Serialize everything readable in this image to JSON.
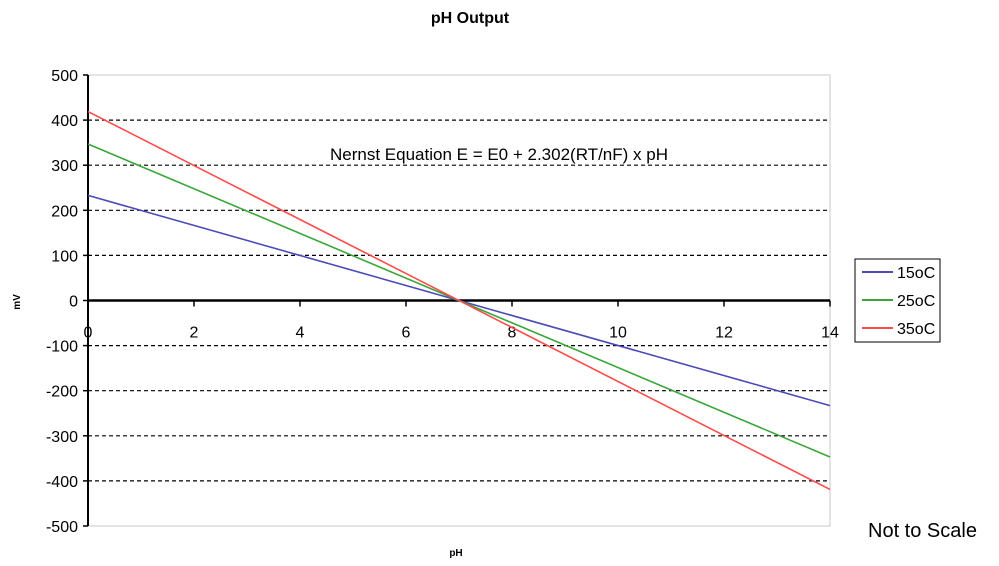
{
  "chart_data": {
    "type": "line",
    "title": "pH Output",
    "xlabel": "pH",
    "ylabel": "mV",
    "xlim": [
      0,
      14
    ],
    "ylim": [
      -500,
      500
    ],
    "x_ticks": [
      "0",
      "2",
      "4",
      "6",
      "8",
      "10",
      "12",
      "14"
    ],
    "y_ticks": [
      "500",
      "400",
      "300",
      "200",
      "100",
      "0",
      "-100",
      "-200",
      "-300",
      "-400",
      "-500"
    ],
    "grid": "horizontal-dashed",
    "legend_position": "right",
    "annotation": "Nernst Equation E = E0 + 2.302(RT/nF) x pH",
    "note": "Not to Scale",
    "series": [
      {
        "name": "15oC",
        "color": "#4a4ab8",
        "x": [
          0,
          14
        ],
        "y": [
          233,
          -233
        ]
      },
      {
        "name": "25oC",
        "color": "#3aa63a",
        "x": [
          0,
          14
        ],
        "y": [
          347,
          -347
        ]
      },
      {
        "name": "35oC",
        "color": "#ff4b4b",
        "x": [
          0,
          14
        ],
        "y": [
          419,
          -419
        ]
      }
    ]
  }
}
